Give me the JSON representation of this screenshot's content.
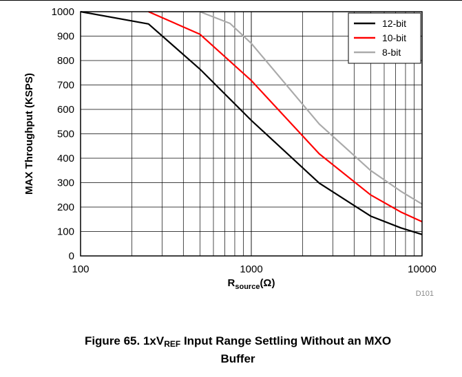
{
  "chart_data": {
    "type": "line",
    "xscale": "log",
    "xlim": [
      100,
      10000
    ],
    "ylim": [
      0,
      1000
    ],
    "x_ticks": [
      100,
      1000,
      10000
    ],
    "x_tick_labels": [
      "100",
      "1000",
      "10000"
    ],
    "y_ticks": [
      0,
      100,
      200,
      300,
      400,
      500,
      600,
      700,
      800,
      900,
      1000
    ],
    "y_tick_labels": [
      "0",
      "100",
      "200",
      "300",
      "400",
      "500",
      "600",
      "700",
      "800",
      "900",
      "1000"
    ],
    "xlabel_main": "R",
    "xlabel_sub": "source",
    "xlabel_unit": "(Ω)",
    "ylabel": "MAX Throughput (KSPS)",
    "grid": true,
    "legend_position": "top-right",
    "series": [
      {
        "name": "12-bit",
        "color": "#000000",
        "x": [
          100,
          250,
          500,
          1000,
          2500,
          5000,
          7500,
          10000
        ],
        "y": [
          1000,
          950,
          765,
          555,
          298,
          163,
          115,
          88
        ]
      },
      {
        "name": "10-bit",
        "color": "#ff0000",
        "x": [
          250,
          500,
          1000,
          2500,
          5000,
          7500,
          10000
        ],
        "y": [
          1000,
          908,
          718,
          418,
          250,
          180,
          140
        ]
      },
      {
        "name": "8-bit",
        "color": "#aaaaaa",
        "x": [
          500,
          750,
          1000,
          2500,
          5000,
          7500,
          10000
        ],
        "y": [
          1000,
          952,
          870,
          540,
          350,
          265,
          212
        ]
      }
    ]
  },
  "source_id": "D101",
  "caption": {
    "prefix": "Figure 65. 1xV",
    "sub": "REF",
    "rest": " Input Range Settling Without an MXO",
    "line2": "Buffer"
  }
}
